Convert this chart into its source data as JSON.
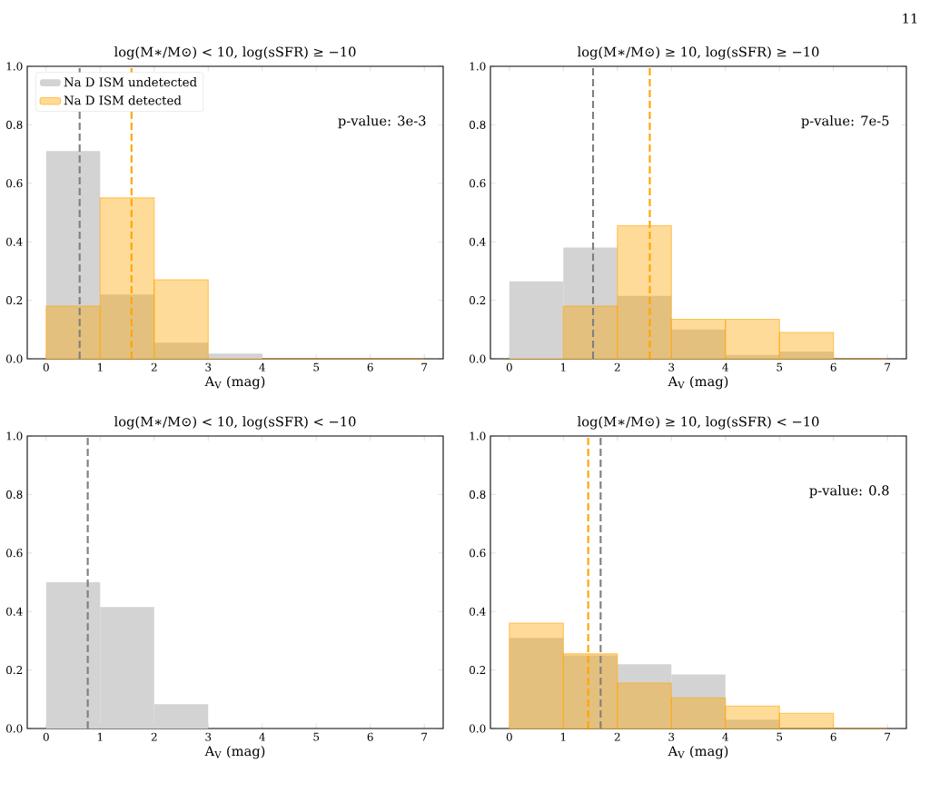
{
  "chart_data": [
    {
      "type": "histogram",
      "title": "log(M∗/M⊙) < 10, log(sSFR) ≥ −10",
      "xlabel": "A$_{V}$ (mag)",
      "bins": [
        0,
        1,
        2,
        3,
        4,
        5,
        6,
        7
      ],
      "series": [
        {
          "name": "Na D ISM undetected",
          "color": "#d3d3d3",
          "values": [
            0.71,
            0.22,
            0.055,
            0.018,
            0,
            0,
            0
          ]
        },
        {
          "name": "Na D ISM detected",
          "color": "#ffa500",
          "values": [
            0.18,
            0.55,
            0.27,
            0,
            0,
            0,
            0
          ]
        }
      ],
      "ref_lines": [
        {
          "axis": "x",
          "value": 0.62,
          "color": "#808080",
          "line_style": "dashed"
        },
        {
          "axis": "x",
          "value": 1.58,
          "color": "#ffa500",
          "line_style": "dashed"
        }
      ],
      "annotations": [
        "p-value: 3e-3",
        "11"
      ],
      "legend": "top left",
      "xlim": [
        -0.35,
        7.35
      ],
      "ylim": [
        0,
        1
      ],
      "xticks": [
        0,
        1,
        2,
        3,
        4,
        5,
        6,
        7
      ],
      "yticks": [
        {
          "value": 0,
          "label": "0.0"
        },
        {
          "value": 0.2,
          "label": "0.2"
        },
        {
          "value": 0.4,
          "label": "0.4"
        },
        {
          "value": 0.6,
          "label": "0.6"
        },
        {
          "value": 0.8,
          "label": "0.8"
        },
        {
          "value": 1,
          "label": "1.0"
        }
      ]
    },
    {
      "type": "histogram",
      "title": "log(M∗/M⊙) ≥ 10, log(sSFR) ≥ −10",
      "xlabel": "A$_{V}$ (mag)",
      "bins": [
        0,
        1,
        2,
        3,
        4,
        5,
        6,
        7
      ],
      "series": [
        {
          "color": "#d3d3d3",
          "values": [
            0.265,
            0.38,
            0.215,
            0.1,
            0.013,
            0.025,
            0
          ]
        },
        {
          "color": "#ffa500",
          "values": [
            0,
            0.18,
            0.455,
            0.135,
            0.135,
            0.09,
            0
          ]
        }
      ],
      "ref_lines": [
        {
          "axis": "x",
          "value": 1.55,
          "color": "#808080",
          "line_style": "dashed"
        },
        {
          "axis": "x",
          "value": 2.6,
          "color": "#ffa500",
          "line_style": "dashed"
        }
      ],
      "annotations": [
        "p-value: 7e-5"
      ],
      "xlim": [
        -0.35,
        7.35
      ],
      "ylim": [
        0,
        1
      ],
      "xticks": [
        0,
        1,
        2,
        3,
        4,
        5,
        6,
        7
      ],
      "yticks": [
        {
          "value": 0,
          "label": "0.0"
        },
        {
          "value": 0.2,
          "label": "0.2"
        },
        {
          "value": 0.4,
          "label": "0.4"
        },
        {
          "value": 0.6,
          "label": "0.6"
        },
        {
          "value": 0.8,
          "label": "0.8"
        },
        {
          "value": 1,
          "label": "1.0"
        }
      ]
    },
    {
      "type": "histogram",
      "title": "log(M∗/M⊙) < 10, log(sSFR) < −10",
      "xlabel": "A$_{V}$ (mag)",
      "bins": [
        0,
        1,
        2,
        3,
        4,
        5,
        6,
        7
      ],
      "series": [
        {
          "color": "#d3d3d3",
          "values": [
            0.5,
            0.415,
            0.083,
            0,
            0,
            0,
            0
          ]
        }
      ],
      "ref_lines": [
        {
          "axis": "x",
          "value": 0.77,
          "color": "#808080",
          "line_style": "dashed"
        }
      ],
      "xlim": [
        -0.35,
        7.35
      ],
      "ylim": [
        0,
        1
      ],
      "xticks": [
        0,
        1,
        2,
        3,
        4,
        5,
        6,
        7
      ],
      "yticks": [
        {
          "value": 0,
          "label": "0.0"
        },
        {
          "value": 0.2,
          "label": "0.2"
        },
        {
          "value": 0.4,
          "label": "0.4"
        },
        {
          "value": 0.6,
          "label": "0.6"
        },
        {
          "value": 0.8,
          "label": "0.8"
        },
        {
          "value": 1,
          "label": "1.0"
        }
      ]
    },
    {
      "type": "histogram",
      "title": "log(M∗/M⊙) ≥ 10, log(sSFR) < −10",
      "xlabel": "A$_{V}$ (mag)",
      "bins": [
        0,
        1,
        2,
        3,
        4,
        5,
        6,
        7
      ],
      "series": [
        {
          "color": "#d3d3d3",
          "values": [
            0.31,
            0.25,
            0.22,
            0.185,
            0.03,
            0,
            0
          ]
        },
        {
          "color": "#ffa500",
          "values": [
            0.36,
            0.255,
            0.155,
            0.105,
            0.077,
            0.052,
            0
          ]
        }
      ],
      "ref_lines": [
        {
          "axis": "x",
          "value": 1.46,
          "color": "#ffa500",
          "line_style": "dashed"
        },
        {
          "axis": "x",
          "value": 1.69,
          "color": "#808080",
          "line_style": "dashed"
        }
      ],
      "annotations": [
        "p-value: 0.8"
      ],
      "xlim": [
        -0.35,
        7.35
      ],
      "ylim": [
        0,
        1
      ],
      "xticks": [
        0,
        1,
        2,
        3,
        4,
        5,
        6,
        7
      ],
      "yticks": [
        {
          "value": 0,
          "label": "0.0"
        },
        {
          "value": 0.2,
          "label": "0.2"
        },
        {
          "value": 0.4,
          "label": "0.4"
        },
        {
          "value": 0.6,
          "label": "0.6"
        },
        {
          "value": 0.8,
          "label": "0.8"
        },
        {
          "value": 1,
          "label": "1.0"
        }
      ]
    }
  ]
}
